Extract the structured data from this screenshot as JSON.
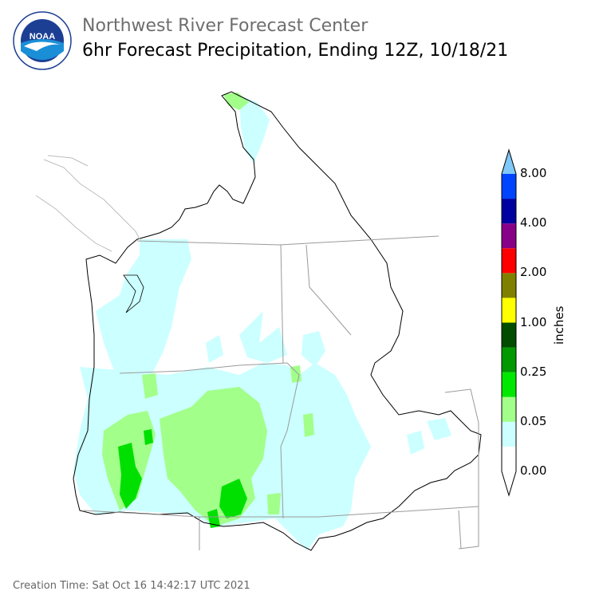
{
  "header": {
    "title": "Northwest River Forecast Center",
    "subtitle": "6hr Forecast Precipitation, Ending 12Z, 10/18/21"
  },
  "logo": {
    "text": "NOAA",
    "ring_text": "NATIONAL OCEANIC AND ATMOSPHERIC ADMINISTRATION · U.S. DEPARTMENT OF COMMERCE"
  },
  "colorbar": {
    "units": "inches",
    "labels": [
      "0.00",
      "0.05",
      "0.25",
      "1.00",
      "2.00",
      "4.00",
      "8.00"
    ],
    "bins": [
      "#ffffff",
      "#ccffff",
      "#a2ff8a",
      "#00e800",
      "#009900",
      "#004d00",
      "#ffff00",
      "#808000",
      "#ff0000",
      "#880088",
      "#0000a0",
      "#0044ff",
      "#7fc8f8"
    ]
  },
  "legend_colors": {
    "trace": "#ccffff",
    "light": "#a2ff8a",
    "moderate": "#00e000",
    "boundary": "#000000",
    "state_line": "#9a9a9a"
  },
  "footer": {
    "creation_time": "Creation Time: Sat Oct 16 14:42:17 UTC 2021"
  }
}
